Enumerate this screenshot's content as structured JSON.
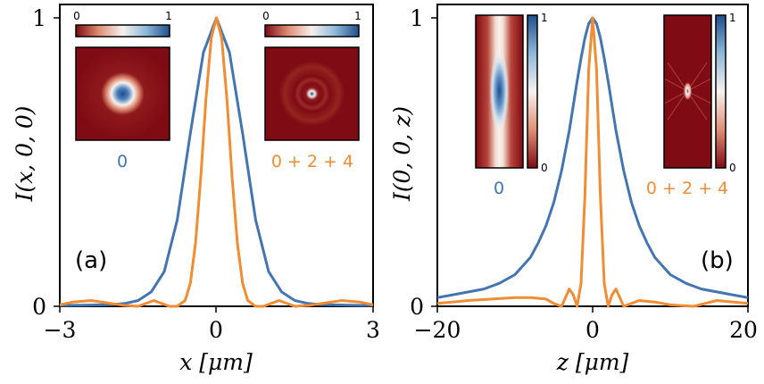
{
  "colors": {
    "mode0": "#4475b0",
    "superposition": "#ef8c34",
    "map_low": "#7f0b14",
    "map_mid": "#f6f2ef",
    "map_high": "#1f4f8c"
  },
  "chart_data": [
    {
      "panel": "a",
      "type": "line",
      "panel_label": "(a)",
      "xlabel": "x [μm]",
      "ylabel": "I(x, 0, 0)",
      "xlim": [
        -3,
        3
      ],
      "ylim": [
        0,
        1
      ],
      "xticks": [
        "−3",
        "0",
        "3"
      ],
      "yticks": [
        "0",
        "1"
      ],
      "series": [
        {
          "name": "0",
          "color": "#4475b0",
          "x": [
            -3,
            -2.5,
            -2,
            -1.75,
            -1.5,
            -1.25,
            -1,
            -0.75,
            -0.5,
            -0.25,
            0,
            0.25,
            0.5,
            0.75,
            1,
            1.25,
            1.5,
            1.75,
            2,
            2.5,
            3
          ],
          "y": [
            0.003,
            0.004,
            0.006,
            0.01,
            0.02,
            0.05,
            0.12,
            0.3,
            0.6,
            0.88,
            1.0,
            0.88,
            0.6,
            0.3,
            0.12,
            0.05,
            0.02,
            0.01,
            0.006,
            0.004,
            0.003
          ]
        },
        {
          "name": "0 + 2 + 4",
          "color": "#ef8c34",
          "x": [
            -3,
            -2.75,
            -2.4,
            -2.1,
            -1.8,
            -1.5,
            -1.2,
            -1.05,
            -0.9,
            -0.75,
            -0.6,
            -0.5,
            -0.4,
            -0.3,
            -0.2,
            -0.1,
            0,
            0.1,
            0.2,
            0.3,
            0.4,
            0.5,
            0.6,
            0.75,
            0.9,
            1.05,
            1.2,
            1.5,
            1.8,
            2.1,
            2.4,
            2.75,
            3
          ],
          "y": [
            0.005,
            0.015,
            0.02,
            0.012,
            0.004,
            0.0,
            0.02,
            0.01,
            0.0,
            0.0,
            0.02,
            0.08,
            0.22,
            0.45,
            0.72,
            0.93,
            1.0,
            0.93,
            0.72,
            0.45,
            0.22,
            0.08,
            0.02,
            0.0,
            0.0,
            0.01,
            0.02,
            0.0,
            0.004,
            0.012,
            0.02,
            0.015,
            0.005
          ]
        }
      ],
      "insets": [
        {
          "name": "0",
          "colorbar_min": "0",
          "colorbar_max": "1"
        },
        {
          "name": "0 + 2 + 4",
          "colorbar_min": "0",
          "colorbar_max": "1"
        }
      ]
    },
    {
      "panel": "b",
      "type": "line",
      "panel_label": "(b)",
      "xlabel": "z [μm]",
      "ylabel": "I(0, 0, z)",
      "xlim": [
        -20,
        20
      ],
      "ylim": [
        0,
        1
      ],
      "xticks": [
        "−20",
        "0",
        "20"
      ],
      "yticks": [
        "0",
        "1"
      ],
      "series": [
        {
          "name": "0",
          "color": "#4475b0",
          "x": [
            -20,
            -18,
            -16,
            -14,
            -12,
            -10,
            -8,
            -7,
            -6,
            -5,
            -4,
            -3,
            -2,
            -1.5,
            -1,
            -0.5,
            0,
            0.5,
            1,
            1.5,
            2,
            3,
            4,
            5,
            6,
            7,
            8,
            10,
            12,
            14,
            16,
            18,
            20
          ],
          "y": [
            0.03,
            0.04,
            0.05,
            0.06,
            0.08,
            0.11,
            0.17,
            0.22,
            0.28,
            0.36,
            0.47,
            0.61,
            0.78,
            0.86,
            0.93,
            0.98,
            1.0,
            0.98,
            0.93,
            0.86,
            0.78,
            0.61,
            0.47,
            0.36,
            0.28,
            0.22,
            0.17,
            0.11,
            0.08,
            0.06,
            0.05,
            0.04,
            0.03
          ]
        },
        {
          "name": "0 + 2 + 4",
          "color": "#ef8c34",
          "x": [
            -20,
            -16,
            -13,
            -10,
            -8,
            -6,
            -5,
            -4,
            -3.5,
            -3,
            -2.5,
            -2,
            -1.5,
            -1,
            -0.5,
            0,
            0.5,
            1,
            1.5,
            2,
            2.5,
            3,
            3.5,
            4,
            5,
            6,
            8,
            10,
            13,
            16,
            20
          ],
          "y": [
            0.01,
            0.02,
            0.025,
            0.03,
            0.03,
            0.025,
            0.01,
            0.0,
            0.03,
            0.06,
            0.04,
            0.0,
            0.08,
            0.38,
            0.82,
            1.0,
            0.82,
            0.38,
            0.08,
            0.0,
            0.04,
            0.06,
            0.03,
            0.0,
            0.01,
            0.02,
            0.015,
            0.005,
            0.0,
            0.02,
            0.01
          ]
        }
      ],
      "insets": [
        {
          "name": "0",
          "colorbar_min": "0",
          "colorbar_max": "1"
        },
        {
          "name": "0 + 2 + 4",
          "colorbar_min": "0",
          "colorbar_max": "1"
        }
      ]
    }
  ]
}
